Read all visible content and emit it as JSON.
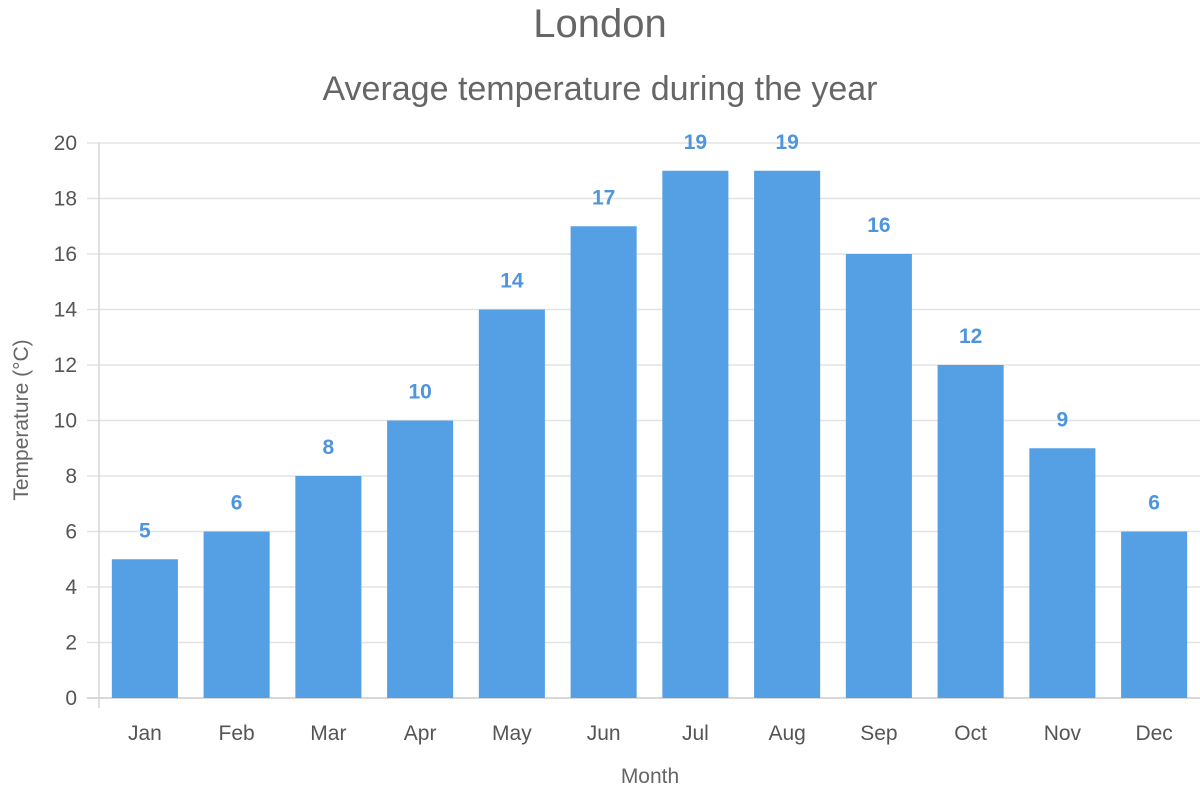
{
  "chart_data": {
    "type": "bar",
    "title": "London",
    "subtitle": "Average temperature during the year",
    "xlabel": "Month",
    "ylabel": "Temperature (°C)",
    "categories": [
      "Jan",
      "Feb",
      "Mar",
      "Apr",
      "May",
      "Jun",
      "Jul",
      "Aug",
      "Sep",
      "Oct",
      "Nov",
      "Dec"
    ],
    "values": [
      5,
      6,
      8,
      10,
      14,
      17,
      19,
      19,
      16,
      12,
      9,
      6
    ],
    "ylim": [
      0,
      20
    ],
    "yticks": [
      0,
      2,
      4,
      6,
      8,
      10,
      12,
      14,
      16,
      18,
      20
    ],
    "grid": true,
    "legend": "none",
    "bar_color": "#55a0e5",
    "label_color": "#4f95dd"
  }
}
